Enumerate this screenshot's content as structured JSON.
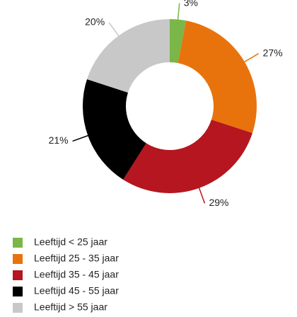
{
  "chart_data": {
    "type": "donut",
    "categories": [
      "Leeftijd < 25 jaar",
      "Leeftijd 25 - 35 jaar",
      "Leeftijd 35 - 45 jaar",
      "Leeftijd 45 - 55 jaar",
      "Leeftijd > 55 jaar"
    ],
    "values": [
      3,
      27,
      29,
      21,
      20
    ],
    "value_labels": [
      "3%",
      "27%",
      "29%",
      "21%",
      "20%"
    ],
    "colors": [
      "#7ab648",
      "#e8730c",
      "#b5161f",
      "#000000",
      "#c8c8c8"
    ],
    "legend": "bottom-left"
  }
}
